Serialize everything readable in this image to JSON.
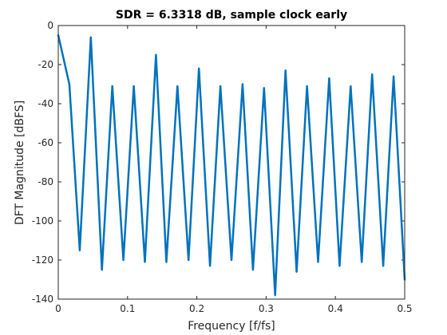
{
  "chart_data": {
    "type": "line",
    "title": "SDR = 6.3318 dB, sample clock early",
    "xlabel": "Frequency [f/fs]",
    "ylabel": "DFT Magnitude [dBFS]",
    "xlim": [
      0,
      0.5
    ],
    "ylim": [
      -140,
      0
    ],
    "xticks": [
      0,
      0.1,
      0.2,
      0.3,
      0.4,
      0.5
    ],
    "xtick_labels": [
      "0",
      "0.1",
      "0.2",
      "0.3",
      "0.4",
      "0.5"
    ],
    "yticks": [
      0,
      -20,
      -40,
      -60,
      -80,
      -100,
      -120,
      -140
    ],
    "ytick_labels": [
      "0",
      "-20",
      "-40",
      "-60",
      "-80",
      "-100",
      "-120",
      "-140"
    ],
    "grid": false,
    "line_color": "#0072bd",
    "series": [
      {
        "x": [
          0,
          0.016,
          0.031,
          0.047,
          0.063,
          0.078,
          0.094,
          0.109,
          0.125,
          0.141,
          0.156,
          0.172,
          0.188,
          0.203,
          0.219,
          0.234,
          0.25,
          0.266,
          0.281,
          0.297,
          0.313,
          0.328,
          0.344,
          0.359,
          0.375,
          0.391,
          0.406,
          0.422,
          0.438,
          0.453,
          0.469,
          0.484,
          0.5
        ],
        "y": [
          -5,
          -30,
          -115,
          -6,
          -125,
          -31,
          -120,
          -31,
          -121,
          -15,
          -121,
          -31,
          -120,
          -22,
          -123,
          -31,
          -120,
          -30,
          -125,
          -32,
          -138,
          -23,
          -126,
          -31,
          -121,
          -27,
          -123,
          -31,
          -121,
          -25,
          -123,
          -26,
          -130
        ]
      }
    ]
  }
}
